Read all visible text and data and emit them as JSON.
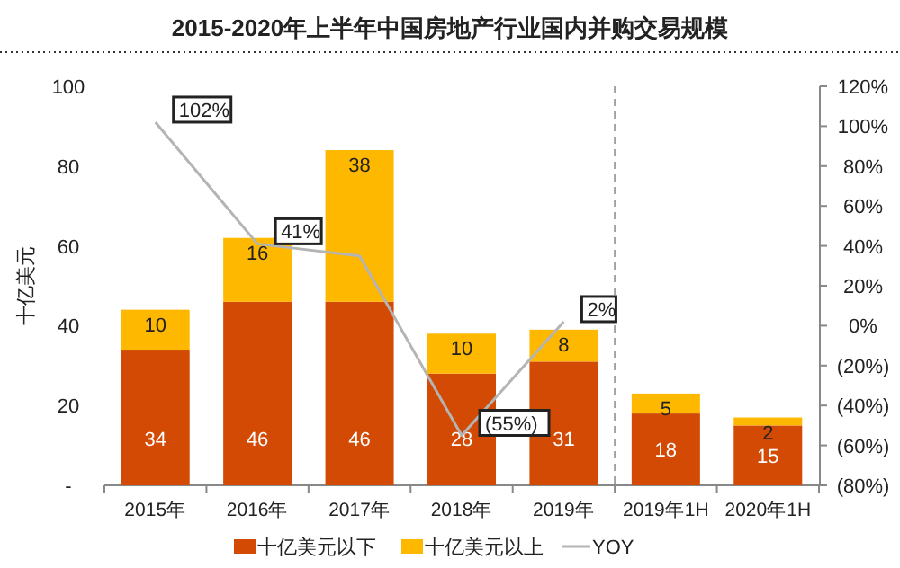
{
  "chart_data": {
    "type": "bar",
    "title": "2015-2020年上半年中国房地产行业国内并购交易规模",
    "ylabel": "十亿美元",
    "categories": [
      "2015年",
      "2016年",
      "2017年",
      "2018年",
      "2019年",
      "2019年1H",
      "2020年1H"
    ],
    "stacked": true,
    "data_labels": true,
    "legend": "bottom",
    "grid": false,
    "ylim": [
      0,
      100
    ],
    "yticks": [
      {
        "value": 0,
        "label": "-"
      },
      20,
      40,
      60,
      80,
      100
    ],
    "y2lim": [
      -80,
      120
    ],
    "y2ticks": [
      {
        "value": -80,
        "label": "(80%)"
      },
      {
        "value": -60,
        "label": "(60%)"
      },
      {
        "value": -40,
        "label": "(40%)"
      },
      {
        "value": -20,
        "label": "(20%)"
      },
      {
        "value": 0,
        "label": "0%"
      },
      {
        "value": 20,
        "label": "20%"
      },
      {
        "value": 40,
        "label": "40%"
      },
      {
        "value": 60,
        "label": "60%"
      },
      {
        "value": 80,
        "label": "80%"
      },
      {
        "value": 100,
        "label": "100%"
      },
      {
        "value": 120,
        "label": "120%"
      }
    ],
    "series": [
      {
        "name": "十亿美元以下",
        "color": "#d24a04",
        "values": [
          34,
          46,
          46,
          28,
          31,
          18,
          15
        ]
      },
      {
        "name": "十亿美元以上",
        "color": "#ffb800",
        "values": [
          10,
          16,
          38,
          10,
          8,
          5,
          2
        ]
      },
      {
        "name": "YOY",
        "type": "line",
        "axis": "y2",
        "color": "#b4b4b4",
        "values": [
          102,
          41,
          35,
          -55,
          2,
          null,
          null
        ],
        "value_labels": [
          "102%",
          "41%",
          null,
          "(55%)",
          "2%",
          null,
          null
        ]
      }
    ]
  }
}
